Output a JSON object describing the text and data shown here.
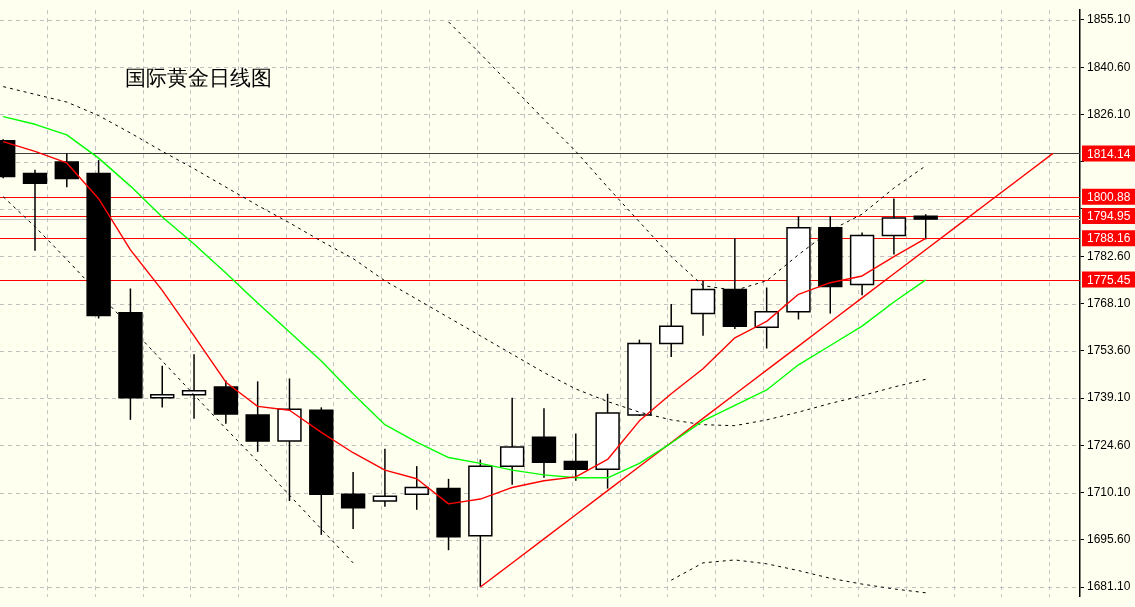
{
  "chart_data": {
    "type": "candlestick",
    "title": "国际黄金日线图",
    "categories": [
      null,
      null,
      null,
      null,
      null,
      null,
      null,
      null,
      null,
      null,
      null,
      null,
      null,
      null,
      null,
      null,
      null,
      null,
      null,
      null,
      null,
      null,
      null,
      null,
      null,
      null,
      null,
      null,
      null,
      null,
      null,
      null,
      null,
      null
    ],
    "ohlc": [
      [
        1818.05,
        1818.5,
        1806.5,
        1807.08
      ],
      [
        1807.97,
        1809.16,
        1784.26,
        1805.0
      ],
      [
        1811.53,
        1814.2,
        1803.8,
        1806.49
      ],
      [
        1807.97,
        1812.1,
        1763.5,
        1764.4
      ],
      [
        1765.29,
        1772.7,
        1732.4,
        1739.21
      ],
      [
        1739.2,
        1749.0,
        1736.2,
        1740.1
      ],
      [
        1740.1,
        1752.5,
        1732.7,
        1741.3
      ],
      [
        1742.47,
        1744.5,
        1731.2,
        1734.17
      ],
      [
        1733.87,
        1744.2,
        1722.6,
        1725.87
      ],
      [
        1725.87,
        1745.1,
        1707.5,
        1735.65
      ],
      [
        1735.35,
        1736.24,
        1697.1,
        1709.57
      ],
      [
        1709.57,
        1716.4,
        1698.9,
        1705.42
      ],
      [
        1707.49,
        1723.5,
        1705.7,
        1708.97
      ],
      [
        1709.57,
        1718.2,
        1704.8,
        1711.64
      ],
      [
        1711.35,
        1714.3,
        1692.4,
        1696.53
      ],
      [
        1696.82,
        1720.2,
        1681.1,
        1718.16
      ],
      [
        1718.16,
        1739.2,
        1712.5,
        1724.09
      ],
      [
        1727.06,
        1735.95,
        1714.6,
        1719.35
      ],
      [
        1719.65,
        1728.2,
        1713.7,
        1717.27
      ],
      [
        1717.27,
        1740.4,
        1711.3,
        1734.47
      ],
      [
        1733.87,
        1757.0,
        1733.6,
        1755.8
      ],
      [
        1755.8,
        1767.96,
        1751.7,
        1761.1
      ],
      [
        1765.0,
        1775.1,
        1758.2,
        1772.4
      ],
      [
        1772.4,
        1788.1,
        1760.3,
        1761.1
      ],
      [
        1760.84,
        1773.0,
        1754.3,
        1765.58
      ],
      [
        1765.58,
        1794.9,
        1763.2,
        1791.37
      ],
      [
        1791.37,
        1794.9,
        1765.0,
        1773.3
      ],
      [
        1773.9,
        1789.9,
        1770.6,
        1789.0
      ],
      [
        1789.0,
        1800.3,
        1783.1,
        1794.3
      ],
      [
        1794.9,
        1795.5,
        1787.8,
        1794.0
      ],
      null,
      null,
      null,
      null
    ],
    "series": [
      {
        "type": "line",
        "color": "#ff0000",
        "line_style": "solid",
        "values": [
          1817.75,
          1814.79,
          1811.23,
          1800.27,
          1784.56,
          1772.11,
          1758.18,
          1743.95,
          1736.54,
          1735.35,
          1728.54,
          1722.31,
          1716.98,
          1714.31,
          1706.6,
          1708.09,
          1711.64,
          1713.72,
          1714.9,
          1720.24,
          1732.1,
          1740.39,
          1748.1,
          1757.58,
          1762.62,
          1770.92,
          1774.48,
          1776.55,
          1782.48,
          1788.11,
          null,
          null,
          null,
          null
        ]
      },
      {
        "type": "line",
        "color": "#00ff00",
        "line_style": "solid",
        "values": [
          1825.46,
          1823.09,
          1819.83,
          1812.71,
          1804.12,
          1794.63,
          1786.34,
          1777.44,
          1768.25,
          1759.36,
          1750.46,
          1740.39,
          1730.91,
          1725.57,
          1720.83,
          1719.05,
          1716.98,
          1715.5,
          1714.61,
          1714.61,
          1719.05,
          1725.28,
          1732.1,
          1736.84,
          1741.58,
          1749.29,
          1755.21,
          1761.14,
          1768.55,
          1775.37,
          null,
          null,
          null,
          null
        ]
      },
      {
        "type": "line",
        "color": "#000000",
        "line_style": "dashed",
        "values": [
          1834.65,
          1832.28,
          1829.91,
          1825.76,
          1820.42,
          1814.79,
          1809.45,
          1803.82,
          1798.19,
          1792.86,
          1787.22,
          1781.89,
          1775.07,
          1769.44,
          1763.81,
          1758.18,
          1752.55,
          1746.91,
          1741.88,
          1738.02,
          1734.76,
          1732.39,
          1730.91,
          1730.61,
          1732.39,
          1734.76,
          1737.43,
          1739.8,
          1742.47,
          1744.84,
          null,
          null,
          null,
          null
        ]
      },
      {
        "type": "line",
        "color": "#000000",
        "line_style": "dashed",
        "values": [
          null,
          null,
          null,
          null,
          null,
          null,
          null,
          null,
          null,
          null,
          null,
          null,
          null,
          null,
          1854.51,
          1844.73,
          1834.65,
          1824.57,
          1814.79,
          1803.82,
          1793.15,
          1782.48,
          1773.59,
          1772.11,
          1775.07,
          1783.07,
          1790.48,
          1795.52,
          1803.53,
          1810.34,
          null,
          null,
          null,
          null
        ]
      },
      {
        "type": "line",
        "color": "#000000",
        "line_style": "dashed",
        "values": [
          1800.86,
          1791.67,
          1781.59,
          1771.22,
          1760.84,
          1750.47,
          1740.1,
          1729.72,
          1719.64,
          1709.27,
          1698.9,
          1688.52,
          null,
          null,
          null,
          null,
          null,
          null,
          null,
          null,
          null,
          1683.19,
          1688.52,
          1689.41,
          1688.23,
          1686.15,
          1683.78,
          1682.0,
          1680.52,
          1679.33,
          null,
          null,
          null,
          null
        ]
      },
      {
        "type": "line",
        "color": "#ff0000",
        "line_style": "solid",
        "values": [
          null,
          null,
          null,
          null,
          null,
          null,
          null,
          null,
          null,
          null,
          null,
          null,
          null,
          null,
          null,
          1681.1,
          1688.49,
          1695.89,
          1703.28,
          1710.67,
          1718.07,
          1725.46,
          1732.85,
          1740.24,
          1747.64,
          1755.03,
          1762.42,
          1769.82,
          1777.21,
          1784.6,
          1792.0,
          1799.39,
          1806.78,
          1814.17
        ]
      }
    ],
    "ylim": [
      1678.1,
      1858.1
    ],
    "yticks": [
      {
        "value": 1855.1,
        "label": "1855.10"
      },
      {
        "value": 1840.6,
        "label": "1840.60"
      },
      {
        "value": 1826.1,
        "label": "1826.10"
      },
      {
        "value": 1811.6,
        "label": null
      },
      {
        "value": 1797.1,
        "label": null
      },
      {
        "value": 1782.6,
        "label": "1782.60"
      },
      {
        "value": 1768.1,
        "label": "1768.10"
      },
      {
        "value": 1753.6,
        "label": "1753.60"
      },
      {
        "value": 1739.1,
        "label": "1739.10"
      },
      {
        "value": 1724.6,
        "label": "1724.60"
      },
      {
        "value": 1710.1,
        "label": "1710.10"
      },
      {
        "value": 1695.6,
        "label": "1695.60"
      },
      {
        "value": 1681.1,
        "label": "1681.10"
      }
    ],
    "ref_lines": [
      {
        "axis": "y",
        "value": 1814.14,
        "label": "1814.14",
        "color": "#404040"
      },
      {
        "axis": "y",
        "value": 1800.88,
        "label": "1800.88",
        "color": "#ff0000"
      },
      {
        "axis": "y",
        "value": 1794.95,
        "label": "1794.95",
        "color": "#ff0000"
      },
      {
        "axis": "y",
        "value": 1794.0,
        "color": "#c0c0c0"
      },
      {
        "axis": "y",
        "value": 1788.16,
        "label": "1788.16",
        "color": "#ff0000"
      },
      {
        "axis": "y",
        "value": 1775.45,
        "label": "1775.45",
        "color": "#ff0000"
      }
    ],
    "grid": true,
    "legend": false,
    "marker": "none",
    "tick_labels": "y"
  }
}
